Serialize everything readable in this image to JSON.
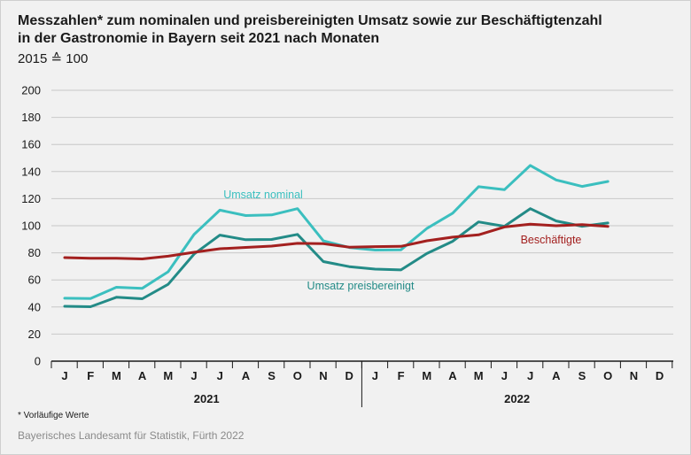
{
  "title": {
    "line1": "Messzahlen* zum nominalen und preisbereinigten Umsatz sowie zur Beschäftigtenzahl",
    "line2": "in der Gastronomie in Bayern seit 2021 nach Monaten"
  },
  "subtitle": "2015 ≙ 100",
  "footnote": "* Vorläufige Werte",
  "source": "Bayerisches Landesamt für Statistik, Fürth 2022",
  "colors": {
    "nominal": "#3bbfbf",
    "real": "#238b87",
    "employees": "#a3201f",
    "grid": "#c8c8c8",
    "axis": "#1a1a1a"
  },
  "chart_data": {
    "type": "line",
    "title": "Messzahlen* zum nominalen und preisbereinigten Umsatz sowie zur Beschäftigtenzahl in der Gastronomie in Bayern seit 2021 nach Monaten",
    "ylabel": "2015 ≙ 100",
    "xlabel": "",
    "ylim": [
      0,
      200
    ],
    "yticks": [
      "0",
      "20",
      "40",
      "60",
      "80",
      "100",
      "120",
      "140",
      "160",
      "180",
      "200"
    ],
    "grid": true,
    "categories": [
      "J",
      "F",
      "M",
      "A",
      "M",
      "J",
      "J",
      "A",
      "S",
      "O",
      "N",
      "D",
      "J",
      "F",
      "M",
      "A",
      "M",
      "J",
      "J",
      "A",
      "S",
      "O",
      "N",
      "D"
    ],
    "years": [
      "2021",
      "2022"
    ],
    "series": [
      {
        "name": "Umsatz nominal",
        "color_key": "nominal",
        "values": [
          46.5,
          46.3,
          54.6,
          53.8,
          66,
          93.5,
          111.5,
          107.5,
          108,
          112.6,
          88.8,
          83.9,
          82,
          82.2,
          98,
          109.3,
          128.8,
          126.6,
          144.5,
          133.8,
          129,
          132.7,
          null,
          null
        ]
      },
      {
        "name": "Umsatz preisbereinigt",
        "color_key": "real",
        "values": [
          40.5,
          40.2,
          47.2,
          46.1,
          56.7,
          79,
          93.1,
          89.7,
          89.9,
          93.6,
          73.5,
          69.8,
          68,
          67.4,
          79.5,
          88.5,
          102.8,
          99.6,
          112.6,
          103.5,
          99.6,
          102,
          null,
          null
        ]
      },
      {
        "name": "Beschäftigte",
        "color_key": "employees",
        "values": [
          76.5,
          76,
          76,
          75.5,
          77.5,
          80.4,
          83,
          84,
          85,
          87,
          86.7,
          84.2,
          84.6,
          84.8,
          88.9,
          91.6,
          93.3,
          99.1,
          101.2,
          100,
          100.8,
          99.5,
          null,
          null
        ]
      }
    ],
    "annotations": [
      {
        "text": "Umsatz nominal",
        "series": 0
      },
      {
        "text": "Umsatz preisbereinigt",
        "series": 1
      },
      {
        "text": "Beschäftigte",
        "series": 2
      }
    ]
  }
}
